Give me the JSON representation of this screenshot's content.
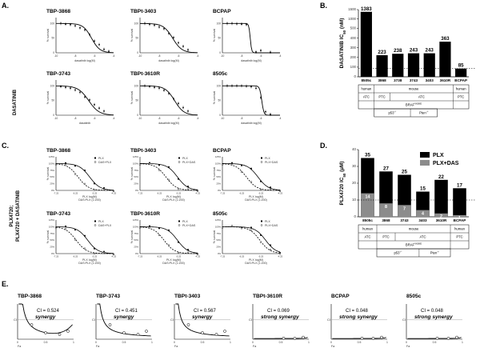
{
  "panels": {
    "A": "A.",
    "B": "B.",
    "C": "C.",
    "D": "D.",
    "E": "E."
  },
  "row_labels": {
    "dasatinib": "DASATINIB",
    "plx_combo_line1": "PLX4720;",
    "plx_combo_line2": "PLX4720 + DASATINIB"
  },
  "panelA": {
    "y_label": "% survival",
    "plots": [
      {
        "title": "TBP-3868",
        "x_label": "dasatinib log(M)",
        "ic50_log": -6.3,
        "xmin": -10,
        "xmax": -4,
        "hill": 1.0,
        "points": [
          [
            -9.5,
            100
          ],
          [
            -9,
            98
          ],
          [
            -8.5,
            96
          ],
          [
            -8,
            92
          ],
          [
            -7.5,
            85
          ],
          [
            -7,
            78
          ],
          [
            -6.5,
            62
          ],
          [
            -6,
            40
          ],
          [
            -5.5,
            28
          ],
          [
            -5,
            12
          ],
          [
            -4.5,
            5
          ]
        ]
      },
      {
        "title": "TBPt-3403",
        "x_label": "dasatinib log(M)",
        "ic50_log": -6.6,
        "xmin": -10,
        "xmax": -4,
        "hill": 0.9,
        "points": [
          [
            -9.5,
            100
          ],
          [
            -9,
            97
          ],
          [
            -8.5,
            94
          ],
          [
            -8,
            88
          ],
          [
            -7.5,
            82
          ],
          [
            -7,
            66
          ],
          [
            -6.5,
            52
          ],
          [
            -6,
            34
          ],
          [
            -5.5,
            22
          ],
          [
            -5,
            10
          ]
        ]
      },
      {
        "title": "BCPAP",
        "x_label": "dasatinib log(M)",
        "ic50_log": -7.1,
        "xmin": -10,
        "xmax": -4,
        "hill": 6.0,
        "points": [
          [
            -9.5,
            100
          ],
          [
            -9,
            100
          ],
          [
            -8.5,
            99
          ],
          [
            -8,
            98
          ],
          [
            -7.5,
            96
          ],
          [
            -6.5,
            3
          ],
          [
            -6,
            8
          ],
          [
            -5,
            2
          ]
        ]
      },
      {
        "title": "TBP-3743",
        "x_label": "dasatinib",
        "ic50_log": -6.6,
        "xmin": -10,
        "xmax": -4,
        "hill": 0.8,
        "points": [
          [
            -9.5,
            98
          ],
          [
            -9,
            95
          ],
          [
            -8.5,
            92
          ],
          [
            -8,
            86
          ],
          [
            -7.5,
            78
          ],
          [
            -7,
            62
          ],
          [
            -6.5,
            52
          ],
          [
            -6,
            36
          ],
          [
            -5.5,
            24
          ],
          [
            -5,
            14
          ]
        ]
      },
      {
        "title": "TBPt-3610R",
        "x_label": "dasatinib log(M)",
        "ic50_log": -6.4,
        "xmin": -10,
        "xmax": -4,
        "hill": 0.9,
        "points": [
          [
            -9.5,
            100
          ],
          [
            -9,
            98
          ],
          [
            -8.5,
            95
          ],
          [
            -8,
            92
          ],
          [
            -7.5,
            85
          ],
          [
            -7,
            74
          ],
          [
            -6.5,
            56
          ],
          [
            -6,
            40
          ],
          [
            -5.5,
            26
          ],
          [
            -5,
            14
          ]
        ]
      },
      {
        "title": "8505c",
        "x_label": "dasatinib log(M)",
        "ic50_log": -5.9,
        "xmin": -10,
        "xmax": -4,
        "hill": 4.0,
        "points": [
          [
            -9.5,
            100
          ],
          [
            -9,
            100
          ],
          [
            -8.5,
            100
          ],
          [
            -8,
            100
          ],
          [
            -7.5,
            99
          ],
          [
            -7,
            97
          ],
          [
            -6.5,
            92
          ],
          [
            -6,
            60
          ],
          [
            -5.5,
            12
          ],
          [
            -5,
            3
          ]
        ]
      }
    ]
  },
  "panelB": {
    "y_label": "DASATINIB  IC",
    "y_label_sub": "50",
    "y_label_unit": " (nM)",
    "ylim": [
      0,
      1500
    ],
    "yticks": [
      0,
      100,
      200,
      300,
      400,
      500,
      1000,
      1500
    ],
    "categories": [
      "8505c",
      "3868",
      "3738",
      "3743",
      "3403",
      "3610R",
      "BCPAP"
    ],
    "values": [
      1383,
      223,
      238,
      243,
      243,
      363,
      85
    ],
    "table": {
      "species": [
        "human",
        "mouse",
        "human"
      ],
      "type": [
        "ATC",
        "PTC",
        "ATC",
        "PTC"
      ],
      "braf": "BRAF",
      "braf_sup": "V600E",
      "genotype": [
        "p53",
        "Pten"
      ],
      "genotype_sup": "-/-"
    }
  },
  "panelC": {
    "y_label": "% survival",
    "x_label_top": "PLX log(M)",
    "x_label_bottom": "DAS:PLX (1:200)",
    "xticks": [
      "-7.25",
      "-6.25",
      "-5.25",
      "-4.25"
    ],
    "plots": [
      {
        "title": "TBP-3868",
        "legend": [
          "PLX",
          "DAS+PLX"
        ],
        "ic50_plx": -5.5,
        "ic50_combo": -6.1
      },
      {
        "title": "TBPt-3403",
        "legend": [
          "PLX",
          "PLX+DAS"
        ],
        "ic50_plx": -5.3,
        "ic50_combo": -5.9
      },
      {
        "title": "BCPAP",
        "legend": [
          "PLX",
          "PLX+DAS"
        ],
        "ic50_plx": -5.4,
        "ic50_combo": -6.0
      },
      {
        "title": "TBP-3743",
        "legend": [
          "PLX",
          "DAS+PLX"
        ],
        "ic50_plx": -5.6,
        "ic50_combo": -6.2
      },
      {
        "title": "TBPt-3610R",
        "legend": [
          "PLX",
          "PLX+DAS"
        ],
        "ic50_plx": -5.3,
        "ic50_combo": -6.0
      },
      {
        "title": "8505c",
        "legend": [
          "PLX",
          "PLX+DAS"
        ],
        "ic50_plx": -5.0,
        "ic50_combo": -5.3
      }
    ]
  },
  "panelD": {
    "y_label": "PLX4720  IC",
    "y_label_sub": "50",
    "y_label_unit": " (µM)",
    "ylim": [
      0,
      40
    ],
    "yticks": [
      0,
      10,
      20,
      30,
      40
    ],
    "categories": [
      "8505c",
      "3868",
      "3743",
      "3403",
      "3610R",
      "BCPAP"
    ],
    "series": [
      {
        "name": "PLX",
        "values": [
          35,
          27,
          25,
          15,
          22,
          17
        ],
        "color": "#000000"
      },
      {
        "name": "PLX+DAS",
        "values": [
          14,
          8,
          7,
          4,
          2,
          1
        ],
        "color": "#8c8c8c"
      }
    ],
    "table": {
      "species": [
        "human",
        "mouse",
        "human"
      ],
      "type": [
        "ATC",
        "PTC",
        "ATC",
        "PTC"
      ],
      "braf": "BRAF",
      "braf_sup": "V600E",
      "genotype": [
        "p53",
        "Pten"
      ],
      "genotype_sup": "-/-"
    }
  },
  "panelE": {
    "x_label": "Fa",
    "y_label": "CI",
    "plots": [
      {
        "title": "TBP-3868",
        "ci": "CI = 0.524",
        "verdict": "synergy"
      },
      {
        "title": "TBP-3743",
        "ci": "CI = 0.451",
        "verdict": "synergy"
      },
      {
        "title": "TBPt-3403",
        "ci": "CI = 0.567",
        "verdict": "synergy"
      },
      {
        "title": "TBPt-3610R",
        "ci": "CI = 0.069",
        "verdict": "strong synergy"
      },
      {
        "title": "BCPAP",
        "ci": "CI = 0.048",
        "verdict": "strong synergy"
      },
      {
        "title": "8505c",
        "ci": "CI = 0.048",
        "verdict": "strong synergy"
      }
    ]
  },
  "chart_data": [
    {
      "type": "bar",
      "panel": "B",
      "categories": [
        "8505c",
        "3868",
        "3738",
        "3743",
        "3403",
        "3610R",
        "BCPAP"
      ],
      "values": [
        1383,
        223,
        238,
        243,
        243,
        363,
        85
      ],
      "ylabel": "DASATINIB IC50 (nM)",
      "ylim": [
        0,
        1500
      ]
    },
    {
      "type": "bar",
      "panel": "D",
      "categories": [
        "8505c",
        "3868",
        "3743",
        "3403",
        "3610R",
        "BCPAP"
      ],
      "series": [
        {
          "name": "PLX",
          "values": [
            35,
            27,
            25,
            15,
            22,
            17
          ]
        },
        {
          "name": "PLX+DAS",
          "values": [
            14,
            8,
            7,
            4,
            2,
            1
          ]
        }
      ],
      "ylabel": "PLX4720 IC50 (µM)",
      "ylim": [
        0,
        40
      ]
    },
    {
      "type": "scatter",
      "panel": "A",
      "series": [
        "TBP-3868",
        "TBPt-3403",
        "BCPAP",
        "TBP-3743",
        "TBPt-3610R",
        "8505c"
      ]
    },
    {
      "type": "scatter",
      "panel": "C",
      "series": [
        "TBP-3868",
        "TBPt-3403",
        "BCPAP",
        "TBP-3743",
        "TBPt-3610R",
        "8505c"
      ]
    },
    {
      "type": "line",
      "panel": "E",
      "series": [
        "TBP-3868",
        "TBP-3743",
        "TBPt-3403",
        "TBPt-3610R",
        "BCPAP",
        "8505c"
      ]
    }
  ]
}
